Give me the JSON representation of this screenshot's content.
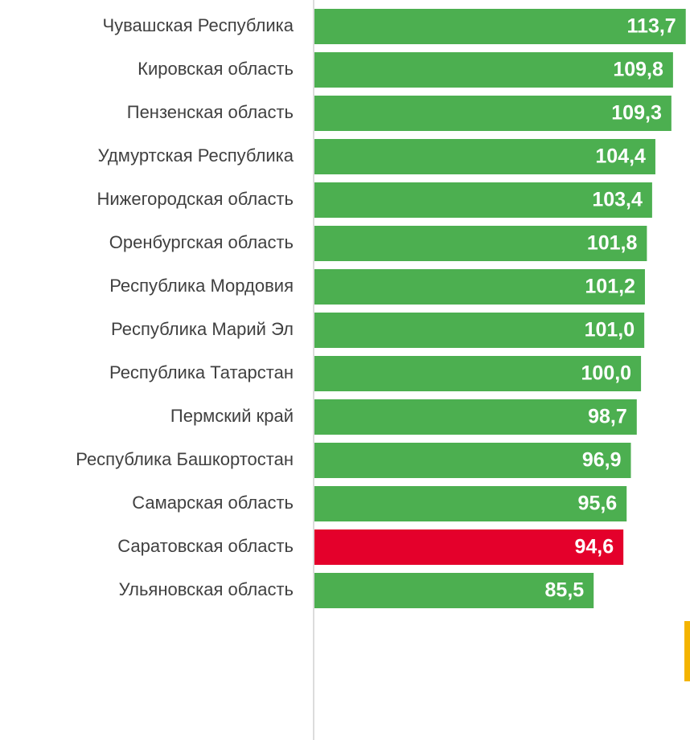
{
  "chart_data": {
    "type": "bar",
    "orientation": "horizontal",
    "categories": [
      "Чувашская Республика",
      "Кировская область",
      "Пензенская область",
      "Удмуртская Республика",
      "Нижегородская область",
      "Оренбургская область",
      "Республика Мордовия",
      "Республика Марий Эл",
      "Республика Татарстан",
      "Пермский край",
      "Республика Башкортостан",
      "Самарская область",
      "Саратовская область",
      "Ульяновская область"
    ],
    "values": [
      113.7,
      109.8,
      109.3,
      104.4,
      103.4,
      101.8,
      101.2,
      101.0,
      100.0,
      98.7,
      96.9,
      95.6,
      94.6,
      85.5
    ],
    "value_labels": [
      "113,7",
      "109,8",
      "109,3",
      "104,4",
      "103,4",
      "101,8",
      "101,2",
      "101,0",
      "100,0",
      "98,7",
      "96,9",
      "95,6",
      "94,6",
      "85,5"
    ],
    "colors": [
      "#4caf50",
      "#4caf50",
      "#4caf50",
      "#4caf50",
      "#4caf50",
      "#4caf50",
      "#4caf50",
      "#4caf50",
      "#4caf50",
      "#4caf50",
      "#4caf50",
      "#4caf50",
      "#e4002b",
      "#4caf50"
    ],
    "xlim": [
      0,
      115
    ]
  }
}
